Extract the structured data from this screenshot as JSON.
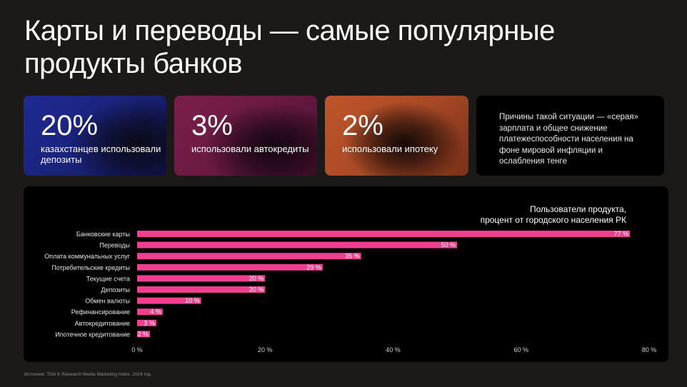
{
  "title": "Карты и переводы — самые популярные продукты банков",
  "cards": [
    {
      "value": "20%",
      "text": "казахстанцев использовали депозиты"
    },
    {
      "value": "3%",
      "text": "использовали автокредиты"
    },
    {
      "value": "2%",
      "text": "использовали ипотеку"
    }
  ],
  "note": "Причины такой ситуации — «серая» зарплата и общее снижение платежеспособности населения на фоне мировой инфляции и ослабления тенге",
  "source": "Источник: TNS K Research Media Marketing Index. 2024 год",
  "colors": {
    "bar": "#ef3f8f",
    "background": "#1b1a19",
    "panel": "#000000"
  },
  "chart_data": {
    "type": "bar",
    "orientation": "horizontal",
    "title": "Пользователи продукта,\nпроцент от городского населения РК",
    "categories": [
      "Банковские карты",
      "Переводы",
      "Оплата коммунальных услуг",
      "Потребительские кредиты",
      "Текущие счета",
      "Депозиты",
      "Обмен валюты",
      "Рефинансирование",
      "Автокредитование",
      "Ипотечное кредитование"
    ],
    "values": [
      77,
      50,
      35,
      29,
      20,
      20,
      10,
      4,
      3,
      2
    ],
    "value_labels": [
      "77 %",
      "50 %",
      "35 %",
      "29 %",
      "20 %",
      "20 %",
      "10 %",
      "4 %",
      "3 %",
      "2 %"
    ],
    "x_ticks": [
      0,
      20,
      40,
      60,
      80
    ],
    "x_tick_labels": [
      "0 %",
      "20 %",
      "40 %",
      "60 %",
      "80 %"
    ],
    "xlim": [
      0,
      80
    ],
    "grid": false,
    "legend": false
  }
}
